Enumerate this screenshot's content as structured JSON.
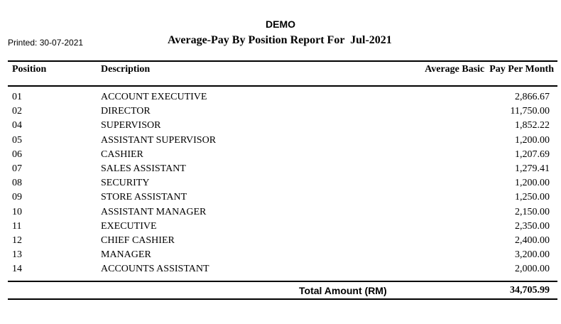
{
  "company": "DEMO",
  "printed": "Printed: 30-07-2021",
  "report_title": "Average-Pay By Position Report For  Jul-2021",
  "columns": {
    "position": "Position",
    "description": "Description",
    "amount": "Average Basic  Pay Per Month"
  },
  "rows": [
    {
      "position": "01",
      "description": "ACCOUNT EXECUTIVE",
      "amount": "2,866.67"
    },
    {
      "position": "02",
      "description": "DIRECTOR",
      "amount": "11,750.00"
    },
    {
      "position": "04",
      "description": "SUPERVISOR",
      "amount": "1,852.22"
    },
    {
      "position": "05",
      "description": "ASSISTANT SUPERVISOR",
      "amount": "1,200.00"
    },
    {
      "position": "06",
      "description": "CASHIER",
      "amount": "1,207.69"
    },
    {
      "position": "07",
      "description": "SALES ASSISTANT",
      "amount": "1,279.41"
    },
    {
      "position": "08",
      "description": "SECURITY",
      "amount": "1,200.00"
    },
    {
      "position": "09",
      "description": "STORE ASSISTANT",
      "amount": "1,250.00"
    },
    {
      "position": "10",
      "description": "ASSISTANT MANAGER",
      "amount": "2,150.00"
    },
    {
      "position": "11",
      "description": "EXECUTIVE",
      "amount": "2,350.00"
    },
    {
      "position": "12",
      "description": "CHIEF CASHIER",
      "amount": "2,400.00"
    },
    {
      "position": "13",
      "description": "MANAGER",
      "amount": "3,200.00"
    },
    {
      "position": "14",
      "description": "ACCOUNTS ASSISTANT",
      "amount": "2,000.00"
    }
  ],
  "total": {
    "label": "Total Amount (RM)",
    "value": "34,705.99"
  }
}
